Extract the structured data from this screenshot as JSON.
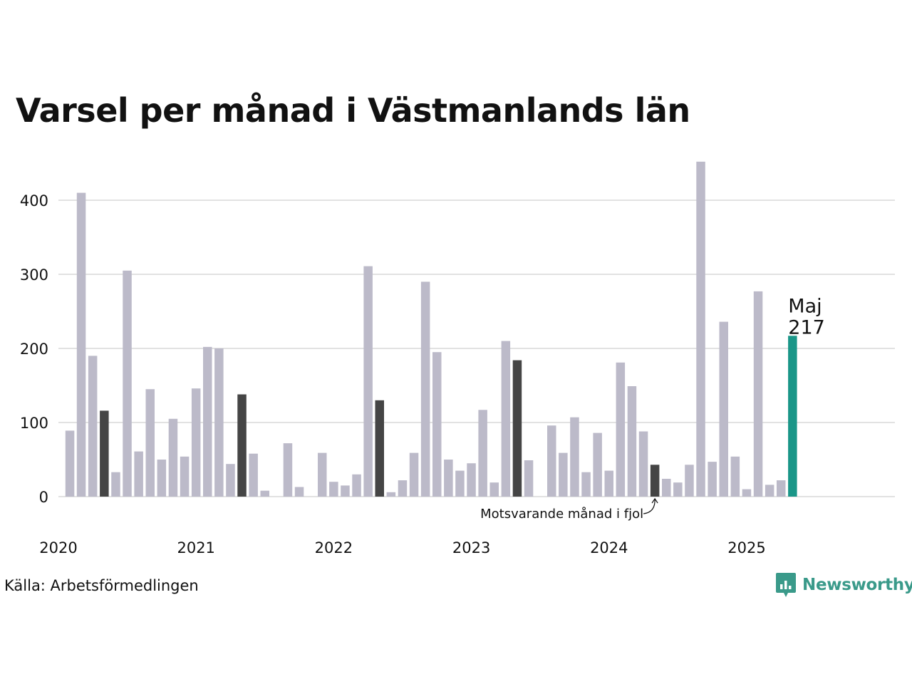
{
  "chart_data": {
    "type": "bar",
    "title": "Varsel per månad i Västmanlands län",
    "xlabel": "",
    "ylabel": "",
    "x_start": "2020-01",
    "x_end": "2025-12",
    "ylim": [
      0,
      460
    ],
    "yticks": [
      0,
      100,
      200,
      300,
      400
    ],
    "year_labels": [
      "2020",
      "2021",
      "2022",
      "2023",
      "2024",
      "2025"
    ],
    "grid": true,
    "colors": {
      "default": "#bcbac9",
      "same_month_previous_years": "#454545",
      "current": "#1a9688",
      "grid": "#e2e2e2"
    },
    "series": [
      {
        "values": [
          89,
          410,
          190,
          116,
          33,
          305,
          61,
          145,
          50,
          105,
          54,
          146,
          202,
          200,
          44,
          138,
          58,
          8,
          0,
          72,
          13,
          0,
          59,
          20,
          15,
          30,
          311,
          130,
          6,
          22,
          59,
          290,
          195,
          50,
          35,
          45,
          117,
          19,
          210,
          184,
          49,
          0,
          96,
          59,
          107,
          33,
          86,
          35,
          181,
          149,
          88,
          43,
          24,
          19,
          43,
          452,
          47,
          236,
          54,
          10,
          277,
          16,
          22,
          217
        ]
      }
    ],
    "highlight": {
      "label": "Maj",
      "value": "217"
    },
    "annotation": {
      "text": "Motsvarande månad i fjol"
    }
  },
  "footer": {
    "source": "Källa: Arbetsförmedlingen",
    "brand": "Newsworthy"
  },
  "icons": {
    "brand_logo": "newsworthy-bar-chart-logo-icon"
  }
}
